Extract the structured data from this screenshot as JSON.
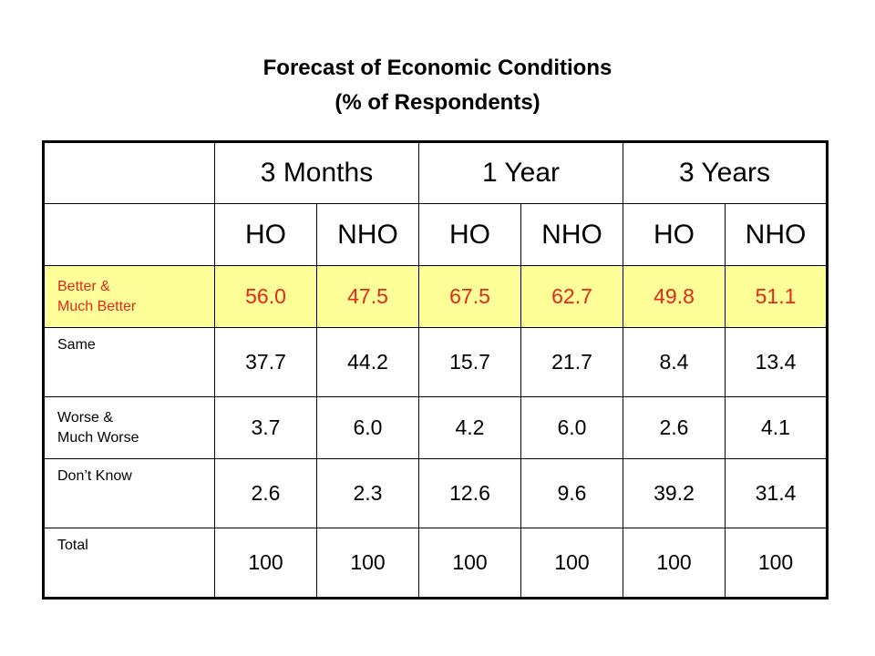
{
  "title_line1": "Forecast of Economic Conditions",
  "title_line2": "(% of Respondents)",
  "colors": {
    "highlight_bg": "#ffff99",
    "highlight_text": "#e8261c"
  },
  "table": {
    "periods": [
      "3 Months",
      "1 Year",
      "3 Years"
    ],
    "subheaders": [
      "HO",
      "NHO",
      "HO",
      "NHO",
      "HO",
      "NHO"
    ],
    "rows": [
      {
        "label_l1": "Better &",
        "label_l2": "Much Better",
        "values": [
          "56.0",
          "47.5",
          "67.5",
          "62.7",
          "49.8",
          "51.1"
        ]
      },
      {
        "label_l1": "Same",
        "label_l2": "",
        "values": [
          "37.7",
          "44.2",
          "15.7",
          "21.7",
          "8.4",
          "13.4"
        ]
      },
      {
        "label_l1": "Worse &",
        "label_l2": "Much Worse",
        "values": [
          "3.7",
          "6.0",
          "4.2",
          "6.0",
          "2.6",
          "4.1"
        ]
      },
      {
        "label_l1": "Don’t Know",
        "label_l2": "",
        "values": [
          "2.6",
          "2.3",
          "12.6",
          "9.6",
          "39.2",
          "31.4"
        ]
      },
      {
        "label_l1": "Total",
        "label_l2": "",
        "values": [
          "100",
          "100",
          "100",
          "100",
          "100",
          "100"
        ]
      }
    ]
  }
}
